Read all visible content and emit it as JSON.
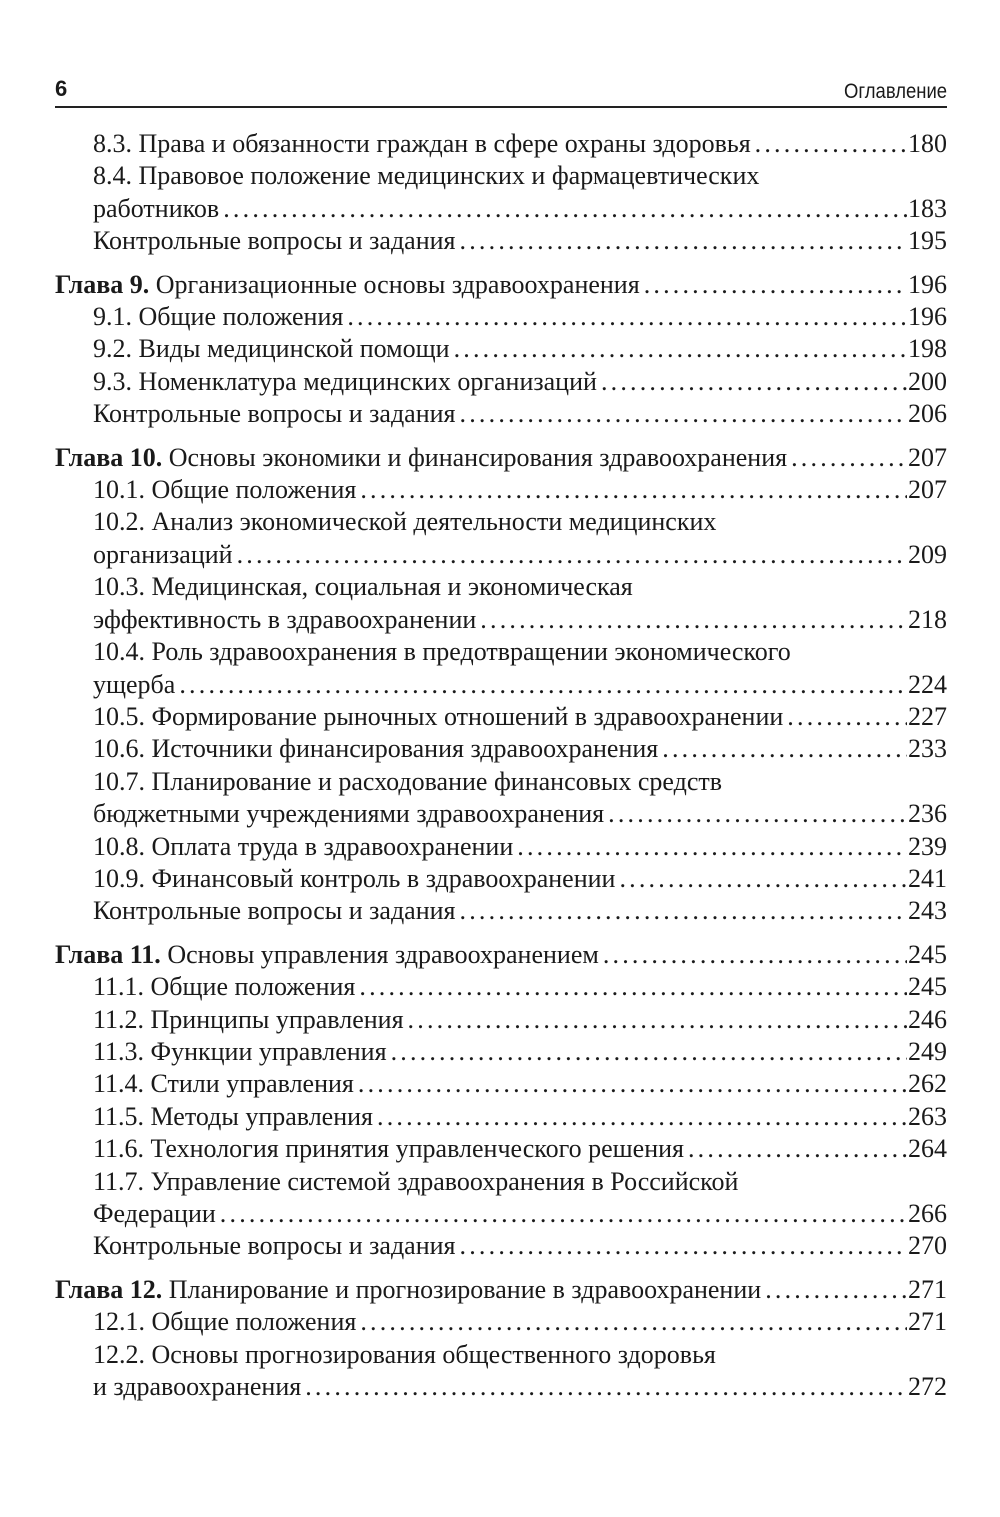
{
  "header": {
    "page_number": "6",
    "title": "Оглавление"
  },
  "entries": [
    {
      "type": "section",
      "lines": [
        "8.3. Права и обязанности граждан в сфере охраны здоровья"
      ],
      "page": "180"
    },
    {
      "type": "section",
      "lines": [
        "8.4. Правовое положение медицинских и фармацевтических",
        "работников"
      ],
      "page": "183"
    },
    {
      "type": "section",
      "lines": [
        "Контрольные вопросы и задания"
      ],
      "page": "195"
    },
    {
      "type": "chapter",
      "label": "Глава 9.",
      "lines": [
        "Организационные основы здравоохранения"
      ],
      "page": "196"
    },
    {
      "type": "section",
      "lines": [
        "9.1. Общие положения"
      ],
      "page": "196"
    },
    {
      "type": "section",
      "lines": [
        "9.2. Виды медицинской помощи"
      ],
      "page": "198"
    },
    {
      "type": "section",
      "lines": [
        "9.3. Номенклатура медицинских организаций"
      ],
      "page": "200"
    },
    {
      "type": "section",
      "lines": [
        "Контрольные вопросы и задания"
      ],
      "page": "206"
    },
    {
      "type": "chapter",
      "label": "Глава 10.",
      "lines": [
        "Основы экономики и финансирования здравоохранения"
      ],
      "page": "207"
    },
    {
      "type": "section",
      "lines": [
        "10.1. Общие положения"
      ],
      "page": "207"
    },
    {
      "type": "section",
      "lines": [
        "10.2. Анализ экономической деятельности медицинских",
        "организаций"
      ],
      "page": "209"
    },
    {
      "type": "section",
      "lines": [
        "10.3. Медицинская, социальная и экономическая",
        "эффективность в здравоохранении"
      ],
      "page": "218"
    },
    {
      "type": "section",
      "lines": [
        "10.4. Роль здравоохранения в предотвращении экономического",
        "ущерба"
      ],
      "page": "224"
    },
    {
      "type": "section",
      "lines": [
        "10.5. Формирование рыночных отношений в здравоохранении"
      ],
      "page": "227"
    },
    {
      "type": "section",
      "lines": [
        "10.6. Источники финансирования здравоохранения"
      ],
      "page": "233"
    },
    {
      "type": "section",
      "lines": [
        "10.7. Планирование и расходование финансовых средств",
        "бюджетными учреждениями здравоохранения"
      ],
      "page": "236"
    },
    {
      "type": "section",
      "lines": [
        "10.8. Оплата труда в здравоохранении"
      ],
      "page": "239"
    },
    {
      "type": "section",
      "lines": [
        "10.9. Финансовый контроль в здравоохранении"
      ],
      "page": "241"
    },
    {
      "type": "section",
      "lines": [
        "Контрольные вопросы и задания"
      ],
      "page": "243"
    },
    {
      "type": "chapter",
      "label": "Глава 11.",
      "lines": [
        "Основы управления здравоохранением"
      ],
      "page": "245"
    },
    {
      "type": "section",
      "lines": [
        "11.1. Общие положения"
      ],
      "page": "245"
    },
    {
      "type": "section",
      "lines": [
        "11.2. Принципы управления"
      ],
      "page": "246"
    },
    {
      "type": "section",
      "lines": [
        "11.3. Функции управления"
      ],
      "page": "249"
    },
    {
      "type": "section",
      "lines": [
        "11.4. Стили управления"
      ],
      "page": "262"
    },
    {
      "type": "section",
      "lines": [
        "11.5. Методы управления"
      ],
      "page": "263"
    },
    {
      "type": "section",
      "lines": [
        "11.6. Технология принятия управленческого решения"
      ],
      "page": "264"
    },
    {
      "type": "section",
      "lines": [
        "11.7. Управление системой здравоохранения в Российской",
        "Федерации"
      ],
      "page": "266"
    },
    {
      "type": "section",
      "lines": [
        "Контрольные вопросы и задания"
      ],
      "page": "270"
    },
    {
      "type": "chapter",
      "label": "Глава 12.",
      "lines": [
        "Планирование и прогнозирование в здравоохранении"
      ],
      "page": "271"
    },
    {
      "type": "section",
      "lines": [
        "12.1. Общие положения"
      ],
      "page": "271"
    },
    {
      "type": "section",
      "lines": [
        "12.2. Основы прогнозирования общественного здоровья",
        "и здравоохранения"
      ],
      "page": "272"
    }
  ]
}
